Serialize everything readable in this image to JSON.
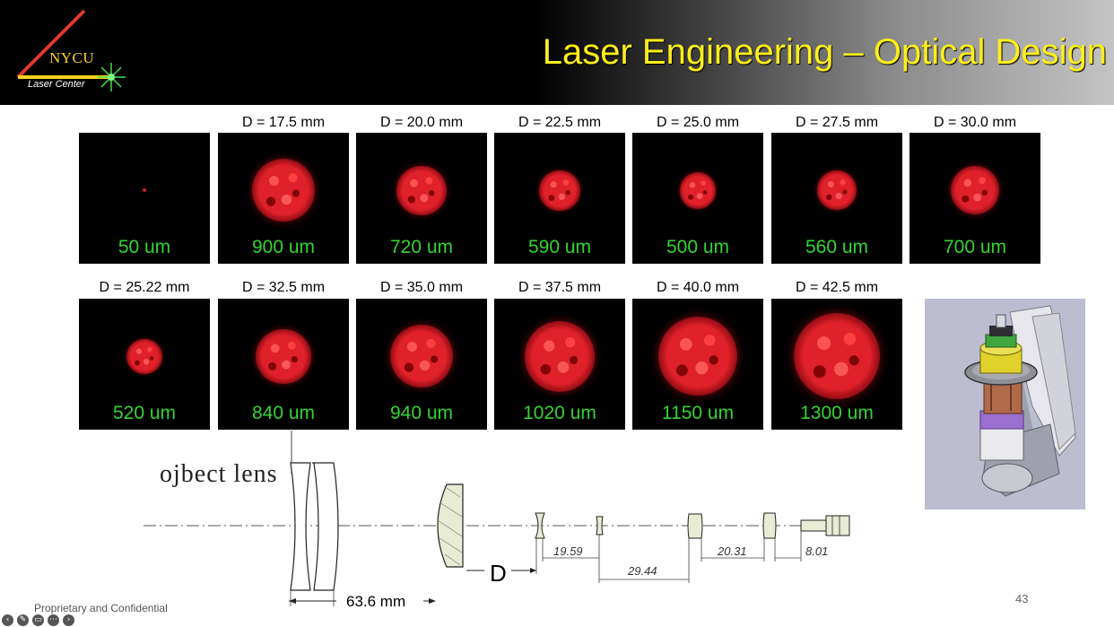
{
  "header": {
    "title": "Laser Engineering – Optical Design",
    "logo": {
      "name": "NYCU",
      "sub": "Laser Center"
    }
  },
  "row1": [
    {
      "d": "",
      "size": "50 um",
      "rel": 0.03
    },
    {
      "d": "D = 17.5 mm",
      "size": "900 um",
      "rel": 0.48
    },
    {
      "d": "D = 20.0 mm",
      "size": "720 um",
      "rel": 0.38
    },
    {
      "d": "D = 22.5 mm",
      "size": "590 um",
      "rel": 0.31
    },
    {
      "d": "D = 25.0 mm",
      "size": "500 um",
      "rel": 0.28
    },
    {
      "d": "D = 27.5 mm",
      "size": "560 um",
      "rel": 0.3
    },
    {
      "d": "D = 30.0 mm",
      "size": "700 um",
      "rel": 0.37
    }
  ],
  "row2": [
    {
      "d": "D = 25.22 mm",
      "size": "520 um",
      "rel": 0.27
    },
    {
      "d": "D = 32.5 mm",
      "size": "840 um",
      "rel": 0.42
    },
    {
      "d": "D = 35.0 mm",
      "size": "940 um",
      "rel": 0.48
    },
    {
      "d": "D = 37.5 mm",
      "size": "1020 um",
      "rel": 0.54
    },
    {
      "d": "D = 40.0 mm",
      "size": "1150 um",
      "rel": 0.6
    },
    {
      "d": "D = 42.5 mm",
      "size": "1300 um",
      "rel": 0.66
    }
  ],
  "diagram": {
    "object_lens_label": "ojbect lens",
    "dim_63": "63.6 mm",
    "dim_d": "D",
    "dim_1959": "19.59",
    "dim_2944": "29.44",
    "dim_2031": "20.31",
    "dim_801": "8.01"
  },
  "footer": {
    "confidential": "Proprietary and Confidential",
    "page": "43"
  },
  "colors": {
    "title": "#ffef1a",
    "spot_label": "#34d334",
    "spot": "#e0202a"
  }
}
